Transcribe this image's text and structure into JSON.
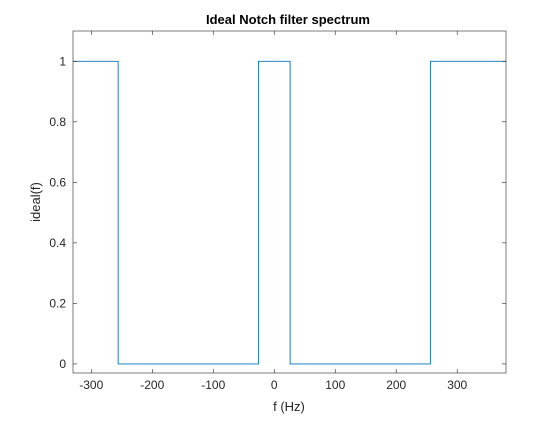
{
  "chart_data": {
    "type": "line",
    "title": "Ideal Notch filter spectrum",
    "xlabel": "f (Hz)",
    "ylabel": "ideal(f)",
    "xlim": [
      -330,
      380
    ],
    "ylim": [
      -0.03,
      1.1
    ],
    "x_ticks": [
      -300,
      -200,
      -100,
      0,
      100,
      200,
      300
    ],
    "x_tick_labels": [
      "-300",
      "-200",
      "-100",
      "0",
      "100",
      "200",
      "300"
    ],
    "y_ticks": [
      0,
      0.2,
      0.4,
      0.6,
      0.8,
      1
    ],
    "y_tick_labels": [
      "0",
      "0.2",
      "0.4",
      "0.6",
      "0.8",
      "1"
    ],
    "grid": false,
    "line_color": "#0072BD",
    "series": [
      {
        "x": [
          -330,
          -256,
          -256,
          -26,
          -26,
          26,
          26,
          256,
          256,
          380
        ],
        "y": [
          1,
          1,
          0,
          0,
          1,
          1,
          0,
          0,
          1,
          1
        ]
      }
    ]
  }
}
